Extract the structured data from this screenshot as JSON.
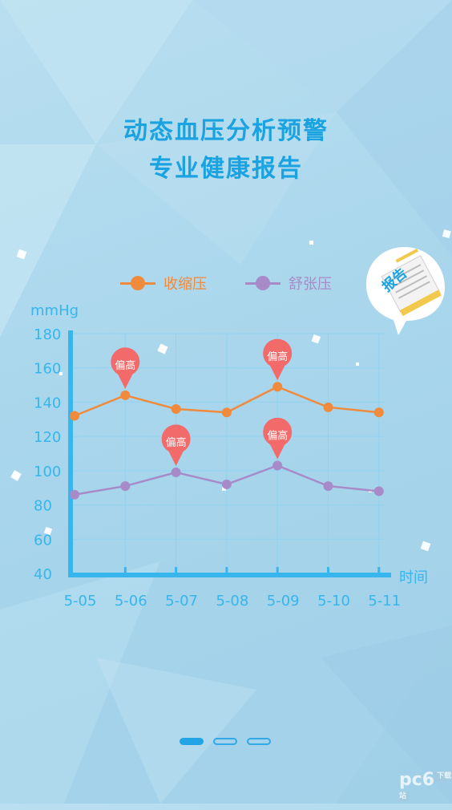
{
  "headline": {
    "line1": "动态血压分析预警",
    "line2": "专业健康报告"
  },
  "legend": {
    "systolic": "收缩压",
    "diastolic": "舒张压"
  },
  "report_badge": {
    "label": "报告"
  },
  "watermark": {
    "logo": "pc6",
    "sub": "下载站"
  },
  "pager": {
    "count": 3,
    "active_index": 0
  },
  "colors": {
    "systolic": "#f08a3c",
    "diastolic": "#a78bc8",
    "axis": "#36b6ec",
    "pin": "#f26a6a",
    "title": "#1aa3e0"
  },
  "chart_data": {
    "type": "line",
    "ylabel": "mmHg",
    "xlabel": "时间",
    "ylim": [
      40,
      180
    ],
    "yticks": [
      180,
      160,
      140,
      120,
      100,
      80,
      60,
      40
    ],
    "categories": [
      "5-05",
      "5-06",
      "5-07",
      "5-08",
      "5-09",
      "5-10",
      "5-11"
    ],
    "series": [
      {
        "name": "收缩压",
        "values": [
          132,
          144,
          136,
          134,
          149,
          137,
          134
        ]
      },
      {
        "name": "舒张压",
        "values": [
          86,
          91,
          99,
          92,
          103,
          91,
          88
        ]
      }
    ],
    "flags": [
      {
        "series": 0,
        "index": 1,
        "label": "偏高"
      },
      {
        "series": 0,
        "index": 4,
        "label": "偏高"
      },
      {
        "series": 1,
        "index": 2,
        "label": "偏高"
      },
      {
        "series": 1,
        "index": 4,
        "label": "偏高"
      }
    ],
    "grid": true
  }
}
